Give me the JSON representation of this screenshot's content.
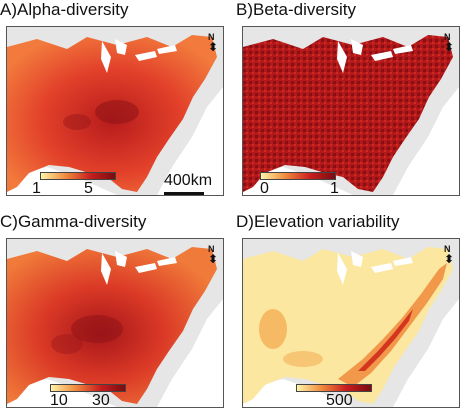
{
  "panels": [
    {
      "title": "A)Alpha-diversity",
      "legend": {
        "min": "1",
        "max": "5"
      }
    },
    {
      "title": "B)Beta-diversity",
      "legend": {
        "min": "0",
        "max": "1"
      }
    },
    {
      "title": "C)Gamma-diversity",
      "legend": {
        "min": "10",
        "max": "30"
      }
    },
    {
      "title": "D)Elevation variability",
      "legend": {
        "min": "",
        "max": "500"
      }
    }
  ],
  "scale_label": "400km",
  "north_label": "N",
  "colors": {
    "low": "#fff3a8",
    "mid": "#f08a3c",
    "high": "#c81e1e",
    "very_high": "#7a0c10",
    "ocean": "#ffffff",
    "land_outside": "#e6e6e6",
    "lakes": "#ffffff"
  }
}
